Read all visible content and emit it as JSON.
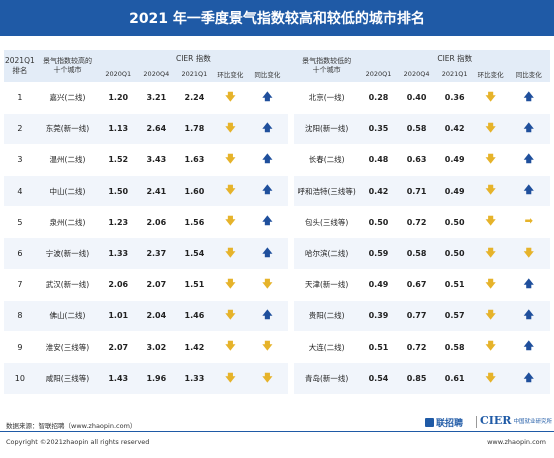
{
  "title": "2021 年一季度景气指数较高和较低的城市排名",
  "header": {
    "rank_label": "2021Q1\n排名",
    "high_city_label": "景气指数较高的\n十个城市",
    "low_city_label": "景气指数较低的\n十个城市",
    "cier_label": "CIER 指数",
    "q1_2020": "2020Q1",
    "q4_2020": "2020Q4",
    "q1_2021": "2021Q1",
    "qoq": "环比变化",
    "yoy": "同比变化"
  },
  "rows": [
    {
      "rank": "1",
      "h_city": "嘉兴(二线)",
      "h_q1_20": "1.20",
      "h_q4_20": "3.21",
      "h_q1_21": "2.24",
      "h_qoq": "down",
      "h_yoy": "up",
      "l_city": "北京(一线)",
      "l_q1_20": "0.28",
      "l_q4_20": "0.40",
      "l_q1_21": "0.36",
      "l_qoq": "down",
      "l_yoy": "up"
    },
    {
      "rank": "2",
      "h_city": "东莞(新一线)",
      "h_q1_20": "1.13",
      "h_q4_20": "2.64",
      "h_q1_21": "1.78",
      "h_qoq": "down",
      "h_yoy": "up",
      "l_city": "沈阳(新一线)",
      "l_q1_20": "0.35",
      "l_q4_20": "0.58",
      "l_q1_21": "0.42",
      "l_qoq": "down",
      "l_yoy": "up"
    },
    {
      "rank": "3",
      "h_city": "温州(二线)",
      "h_q1_20": "1.52",
      "h_q4_20": "3.43",
      "h_q1_21": "1.63",
      "h_qoq": "down",
      "h_yoy": "up",
      "l_city": "长春(二线)",
      "l_q1_20": "0.48",
      "l_q4_20": "0.63",
      "l_q1_21": "0.49",
      "l_qoq": "down",
      "l_yoy": "up"
    },
    {
      "rank": "4",
      "h_city": "中山(二线)",
      "h_q1_20": "1.50",
      "h_q4_20": "2.41",
      "h_q1_21": "1.60",
      "h_qoq": "down",
      "h_yoy": "up",
      "l_city": "呼和浩特(三线等)",
      "l_q1_20": "0.42",
      "l_q4_20": "0.71",
      "l_q1_21": "0.49",
      "l_qoq": "down",
      "l_yoy": "up"
    },
    {
      "rank": "5",
      "h_city": "泉州(二线)",
      "h_q1_20": "1.23",
      "h_q4_20": "2.06",
      "h_q1_21": "1.56",
      "h_qoq": "down",
      "h_yoy": "up",
      "l_city": "包头(三线等)",
      "l_q1_20": "0.50",
      "l_q4_20": "0.72",
      "l_q1_21": "0.50",
      "l_qoq": "down",
      "l_yoy": "flat"
    },
    {
      "rank": "6",
      "h_city": "宁波(新一线)",
      "h_q1_20": "1.33",
      "h_q4_20": "2.37",
      "h_q1_21": "1.54",
      "h_qoq": "down",
      "h_yoy": "up",
      "l_city": "哈尔滨(二线)",
      "l_q1_20": "0.59",
      "l_q4_20": "0.58",
      "l_q1_21": "0.50",
      "l_qoq": "down",
      "l_yoy": "down"
    },
    {
      "rank": "7",
      "h_city": "武汉(新一线)",
      "h_q1_20": "2.06",
      "h_q4_20": "2.07",
      "h_q1_21": "1.51",
      "h_qoq": "down",
      "h_yoy": "down",
      "l_city": "天津(新一线)",
      "l_q1_20": "0.49",
      "l_q4_20": "0.67",
      "l_q1_21": "0.51",
      "l_qoq": "down",
      "l_yoy": "up"
    },
    {
      "rank": "8",
      "h_city": "佛山(二线)",
      "h_q1_20": "1.01",
      "h_q4_20": "2.04",
      "h_q1_21": "1.46",
      "h_qoq": "down",
      "h_yoy": "up",
      "l_city": "贵阳(二线)",
      "l_q1_20": "0.39",
      "l_q4_20": "0.77",
      "l_q1_21": "0.57",
      "l_qoq": "down",
      "l_yoy": "up"
    },
    {
      "rank": "9",
      "h_city": "淮安(三线等)",
      "h_q1_20": "2.07",
      "h_q4_20": "3.02",
      "h_q1_21": "1.42",
      "h_qoq": "down",
      "h_yoy": "down",
      "l_city": "大连(二线)",
      "l_q1_20": "0.51",
      "l_q4_20": "0.72",
      "l_q1_21": "0.58",
      "l_qoq": "down",
      "l_yoy": "up"
    },
    {
      "rank": "10",
      "h_city": "咸阳(三线等)",
      "h_q1_20": "1.43",
      "h_q4_20": "1.96",
      "h_q1_21": "1.33",
      "h_qoq": "down",
      "h_yoy": "down",
      "l_city": "青岛(新一线)",
      "l_q1_20": "0.54",
      "l_q4_20": "0.85",
      "l_q1_21": "0.61",
      "l_qoq": "down",
      "l_yoy": "up"
    }
  ],
  "arrow_glyphs": {
    "up": "🡅",
    "down": "🡇",
    "flat": "➡"
  },
  "colors": {
    "title_bg": "#1f5aa6",
    "header_bg": "#e3ecf7",
    "arrow_down": "#e6b32a",
    "arrow_up": "#1f4f9c"
  },
  "footer": {
    "source": "数据来源：智联招聘（www.zhaopin.com）",
    "copyright": "Copyright ©2021zhaopin all rights reserved",
    "brand_zl": "联招聘",
    "brand_cier": "CIER",
    "brand_cier_sub": "中国就业研究所",
    "website": "www.zhaopin.com"
  }
}
